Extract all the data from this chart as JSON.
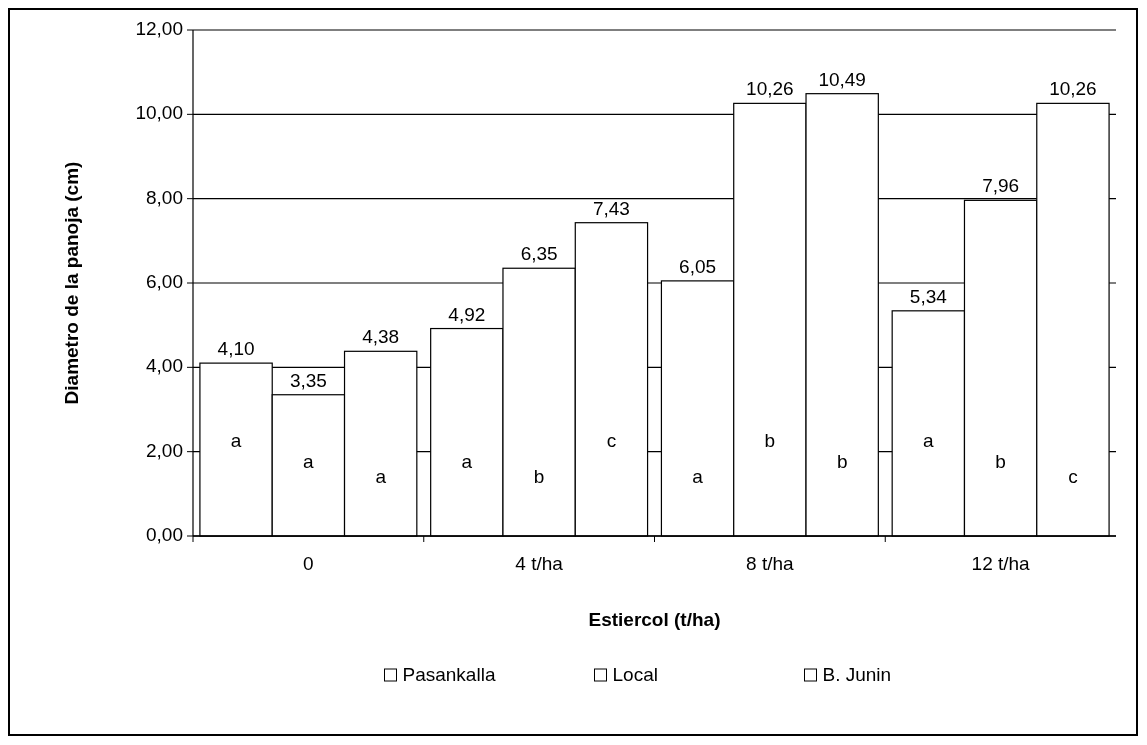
{
  "chart_data": {
    "type": "bar",
    "xlabel": "Estiercol  (t/ha)",
    "ylabel": "Diametro de la panoja (cm)",
    "categories": [
      "0",
      "4 t/ha",
      "8 t/ha",
      "12 t/ha"
    ],
    "series": [
      {
        "name": "Pasankalla",
        "color": "#ffffff",
        "values": [
          4.1,
          4.92,
          6.05,
          5.34
        ],
        "value_labels": [
          "4,10",
          "4,92",
          "6,05",
          "5,34"
        ]
      },
      {
        "name": "Local",
        "color": "#ffffff",
        "values": [
          3.35,
          6.35,
          10.26,
          7.96
        ],
        "value_labels": [
          "3,35",
          "6,35",
          "10,26",
          "7,96"
        ]
      },
      {
        "name": "B. Junin",
        "color": "#ffffff",
        "values": [
          4.38,
          7.43,
          10.49,
          10.26
        ],
        "value_labels": [
          "4,38",
          "7,43",
          "10,49",
          "10,26"
        ]
      }
    ],
    "ylim": [
      0,
      12
    ],
    "yticks": [
      {
        "value": 0,
        "label": "0,00"
      },
      {
        "value": 2,
        "label": "2,00"
      },
      {
        "value": 4,
        "label": "4,00"
      },
      {
        "value": 6,
        "label": "6,00"
      },
      {
        "value": 8,
        "label": "8,00"
      },
      {
        "value": 10,
        "label": "10,00"
      },
      {
        "value": 12,
        "label": "12,00"
      }
    ],
    "grid": "y",
    "legend": "bottom",
    "annotations": [
      "a",
      "a",
      "a",
      "a",
      "b",
      "c",
      "a",
      "b",
      "b",
      "a",
      "b",
      "c"
    ]
  }
}
